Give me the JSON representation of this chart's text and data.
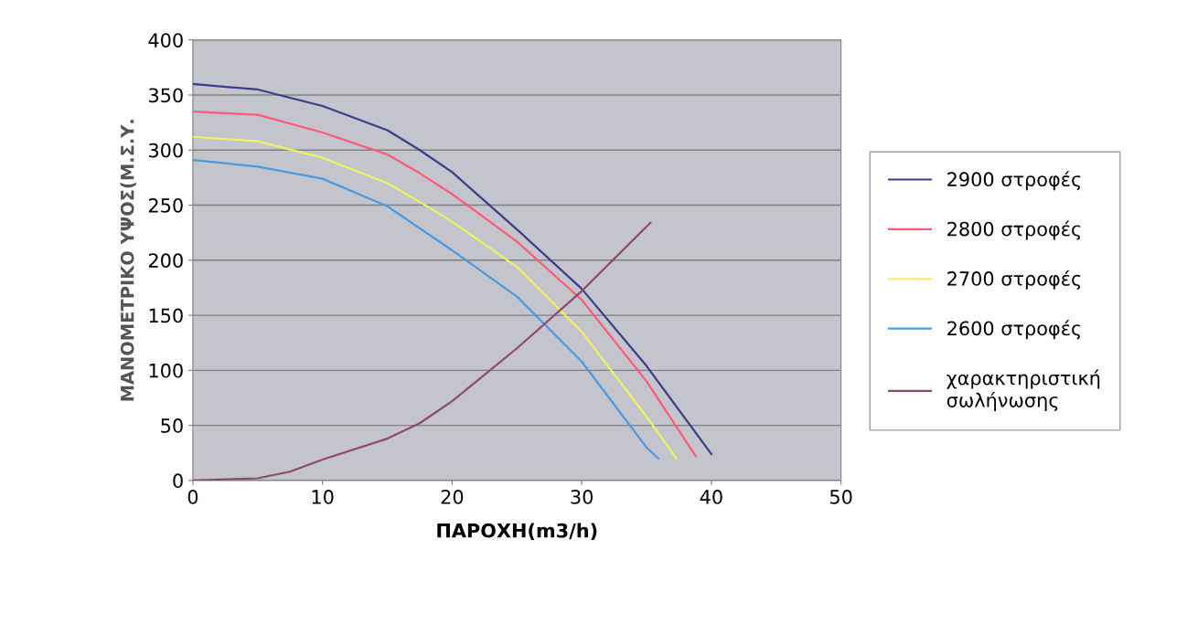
{
  "chart_data": {
    "type": "line",
    "xlabel": "ΠΑΡΟΧΗ(m3/h)",
    "ylabel": "ΜΑΝΟΜΕΤΡΙΚΟ ΥΨΟΣ(Μ.Σ.Υ.",
    "xlim": [
      0,
      50
    ],
    "xticks": [
      0,
      10,
      20,
      30,
      40,
      50
    ],
    "ylim": [
      0,
      400
    ],
    "yticks": [
      0,
      50,
      100,
      150,
      200,
      250,
      300,
      350,
      400
    ],
    "grid": "y",
    "legend": "right",
    "marker": "none",
    "line_style": "solid",
    "series": [
      {
        "name": "2900 στροφές",
        "color": "#3c3c8c",
        "x": [
          0,
          5,
          10,
          15,
          17.5,
          20,
          25,
          30,
          35,
          40
        ],
        "values": [
          360,
          355,
          340,
          318,
          300,
          280,
          228,
          174,
          104,
          24
        ]
      },
      {
        "name": "2800 στροφές",
        "color": "#ff5a78",
        "x": [
          0,
          5,
          10,
          15,
          17.5,
          20,
          25,
          30,
          35,
          38.8
        ],
        "values": [
          335,
          332,
          316,
          296,
          279,
          260,
          217,
          164,
          90,
          22
        ]
      },
      {
        "name": "2700 στροφές",
        "color": "#f0f060",
        "x": [
          0,
          5,
          10,
          15,
          17.5,
          20,
          25,
          30,
          35,
          37.3
        ],
        "values": [
          312,
          308,
          293,
          270,
          253,
          235,
          194,
          135,
          58,
          20
        ]
      },
      {
        "name": "2600 στροφές",
        "color": "#4a9be0",
        "x": [
          0,
          5,
          10,
          15,
          17.5,
          20,
          25,
          30,
          35,
          35.9
        ],
        "values": [
          291,
          285,
          274,
          249,
          229,
          209,
          167,
          108,
          30,
          20
        ]
      },
      {
        "name": "χαρακτηριστική\nσωλήνωσης",
        "color": "#8e4a6a",
        "x": [
          0,
          5,
          7.5,
          10,
          15,
          17.5,
          20,
          25,
          30,
          35.3
        ],
        "values": [
          0,
          2,
          8,
          19,
          38,
          52,
          72,
          120,
          172,
          234
        ]
      }
    ]
  }
}
